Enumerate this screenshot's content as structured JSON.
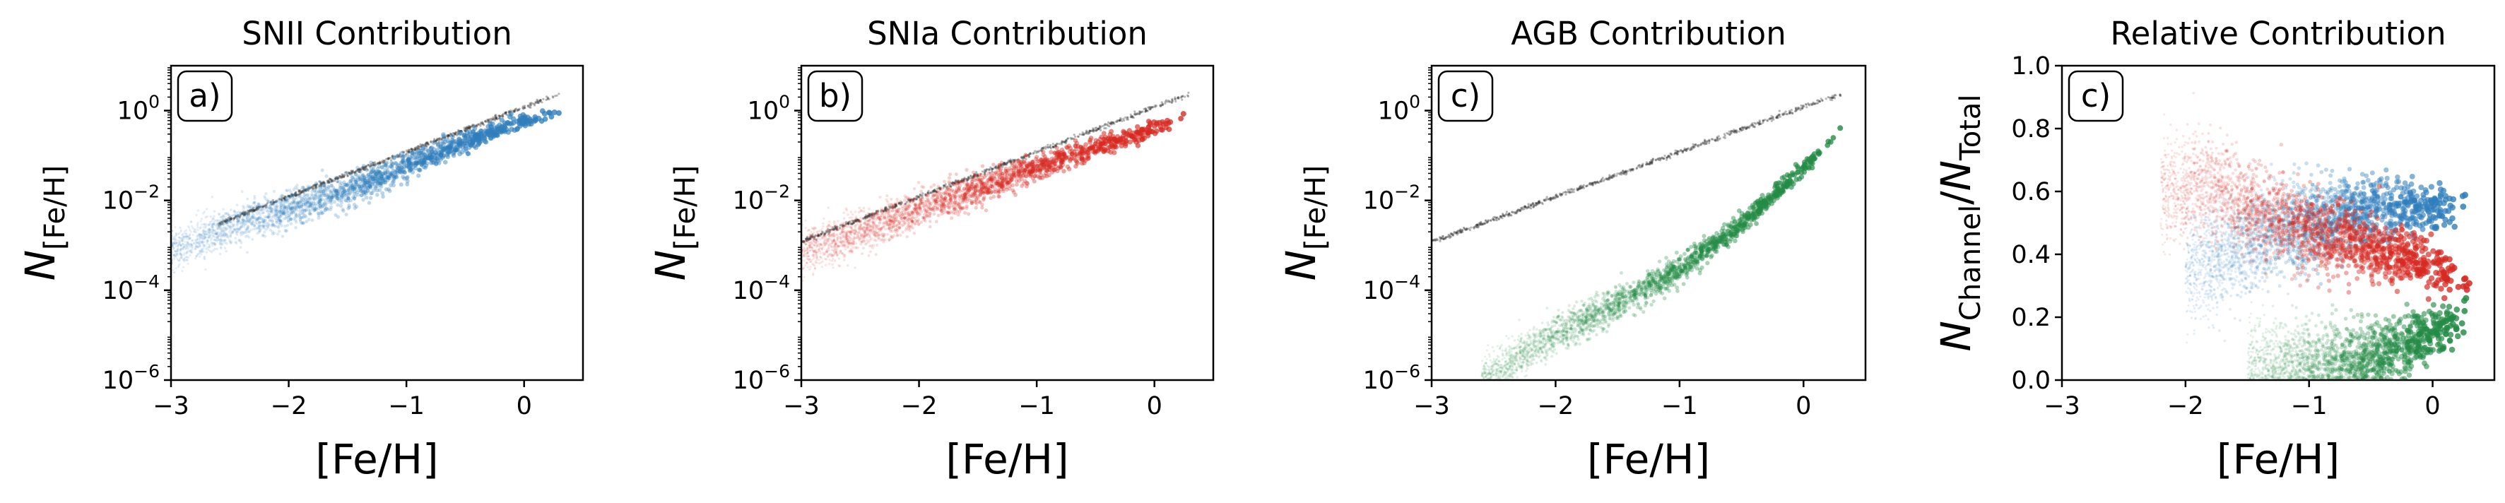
{
  "chart_data": [
    {
      "type": "scatter",
      "title": "SNII Contribution",
      "panel_label": "a)",
      "xlabel": "[Fe/H]",
      "ylabel": "N",
      "ylabel_sub": "[Fe/H]",
      "xlim": [
        -3,
        0.5
      ],
      "ylim": [
        1e-06,
        10
      ],
      "yscale": "log",
      "xticks": [
        -3,
        -2,
        -1,
        0
      ],
      "xtick_labels": [
        "−3",
        "−2",
        "−1",
        "0"
      ],
      "yticks": [
        1e-06,
        0.0001,
        0.01,
        1
      ],
      "ytick_labels": [
        {
          "base": "10",
          "exp": "−6"
        },
        {
          "base": "10",
          "exp": "−4"
        },
        {
          "base": "10",
          "exp": "−2"
        },
        {
          "base": "10",
          "exp": "0"
        }
      ],
      "color": "#2f7ebc",
      "series": [
        {
          "role": "total",
          "color": "#333333",
          "x": [
            -2.6,
            -2,
            -1,
            0,
            0.3
          ],
          "y": [
            0.003,
            0.012,
            0.12,
            1.2,
            2.3
          ]
        },
        {
          "role": "channel",
          "color": "#2f7ebc",
          "x": [
            -3.0,
            -2.5,
            -2.0,
            -1.5,
            -1.0,
            -0.5,
            0.0,
            0.3
          ],
          "y": [
            0.0008,
            0.0025,
            0.0063,
            0.016,
            0.06,
            0.2,
            0.6,
            0.95
          ]
        }
      ]
    },
    {
      "type": "scatter",
      "title": "SNIa Contribution",
      "panel_label": "b)",
      "xlabel": "[Fe/H]",
      "ylabel": "N",
      "ylabel_sub": "[Fe/H]",
      "xlim": [
        -3,
        0.5
      ],
      "ylim": [
        1e-06,
        10
      ],
      "yscale": "log",
      "xticks": [
        -3,
        -2,
        -1,
        0
      ],
      "xtick_labels": [
        "−3",
        "−2",
        "−1",
        "0"
      ],
      "yticks": [
        1e-06,
        0.0001,
        0.01,
        1
      ],
      "ytick_labels": [
        {
          "base": "10",
          "exp": "−6"
        },
        {
          "base": "10",
          "exp": "−4"
        },
        {
          "base": "10",
          "exp": "−2"
        },
        {
          "base": "10",
          "exp": "0"
        }
      ],
      "color": "#d62a22",
      "series": [
        {
          "role": "total",
          "color": "#333333",
          "x": [
            -3,
            -2,
            -1,
            0,
            0.3
          ],
          "y": [
            0.0012,
            0.012,
            0.12,
            1.2,
            2.3
          ]
        },
        {
          "role": "channel",
          "color": "#d62a22",
          "x": [
            -3.0,
            -2.5,
            -2.0,
            -1.5,
            -1.0,
            -0.5,
            0.0,
            0.3
          ],
          "y": [
            0.0007,
            0.002,
            0.006,
            0.018,
            0.055,
            0.15,
            0.4,
            0.65
          ]
        }
      ]
    },
    {
      "type": "scatter",
      "title": "AGB Contribution",
      "panel_label": "c)",
      "xlabel": "[Fe/H]",
      "ylabel": "N",
      "ylabel_sub": "[Fe/H]",
      "xlim": [
        -3,
        0.5
      ],
      "ylim": [
        1e-06,
        10
      ],
      "yscale": "log",
      "xticks": [
        -3,
        -2,
        -1,
        0
      ],
      "xtick_labels": [
        "−3",
        "−2",
        "−1",
        "0"
      ],
      "yticks": [
        1e-06,
        0.0001,
        0.01,
        1
      ],
      "ytick_labels": [
        {
          "base": "10",
          "exp": "−6"
        },
        {
          "base": "10",
          "exp": "−4"
        },
        {
          "base": "10",
          "exp": "−2"
        },
        {
          "base": "10",
          "exp": "0"
        }
      ],
      "color": "#238b45",
      "series": [
        {
          "role": "total",
          "color": "#333333",
          "x": [
            -3,
            -2,
            -1,
            0,
            0.3
          ],
          "y": [
            0.0012,
            0.012,
            0.12,
            1.2,
            2.3
          ]
        },
        {
          "role": "channel",
          "color": "#238b45",
          "x": [
            -2.6,
            -2.0,
            -1.5,
            -1.0,
            -0.5,
            0.0,
            0.3
          ],
          "y": [
            1e-06,
            1e-05,
            5e-05,
            0.0003,
            0.003,
            0.05,
            0.45
          ]
        }
      ]
    },
    {
      "type": "scatter",
      "title": "Relative Contribution",
      "panel_label": "c)",
      "xlabel": "[Fe/H]",
      "ylabel": "N",
      "ylabel_sub": "Channel",
      "ylabel_den": "N",
      "ylabel_den_sub": "Total",
      "xlim": [
        -3,
        0.5
      ],
      "ylim": [
        0,
        1
      ],
      "yscale": "linear",
      "xticks": [
        -3,
        -2,
        -1,
        0
      ],
      "xtick_labels": [
        "−3",
        "−2",
        "−1",
        "0"
      ],
      "yticks": [
        0,
        0.2,
        0.4,
        0.6,
        0.8,
        1
      ],
      "ytick_labels": [
        "0.0",
        "0.2",
        "0.4",
        "0.6",
        "0.8",
        "1.0"
      ],
      "series": [
        {
          "role": "SNII",
          "color": "#2f7ebc",
          "x": [
            -2.0,
            -1.5,
            -1.0,
            -0.5,
            0.0,
            0.3
          ],
          "y": [
            0.35,
            0.43,
            0.5,
            0.55,
            0.55,
            0.52
          ]
        },
        {
          "role": "SNIa",
          "color": "#d62a22",
          "x": [
            -2.2,
            -1.8,
            -1.5,
            -1.0,
            -0.5,
            0.0,
            0.3
          ],
          "y": [
            0.6,
            0.62,
            0.55,
            0.48,
            0.42,
            0.36,
            0.32
          ]
        },
        {
          "role": "AGB",
          "color": "#238b45",
          "x": [
            -1.5,
            -1.0,
            -0.5,
            0.0,
            0.3
          ],
          "y": [
            0.0,
            0.02,
            0.06,
            0.15,
            0.2
          ]
        }
      ]
    }
  ]
}
